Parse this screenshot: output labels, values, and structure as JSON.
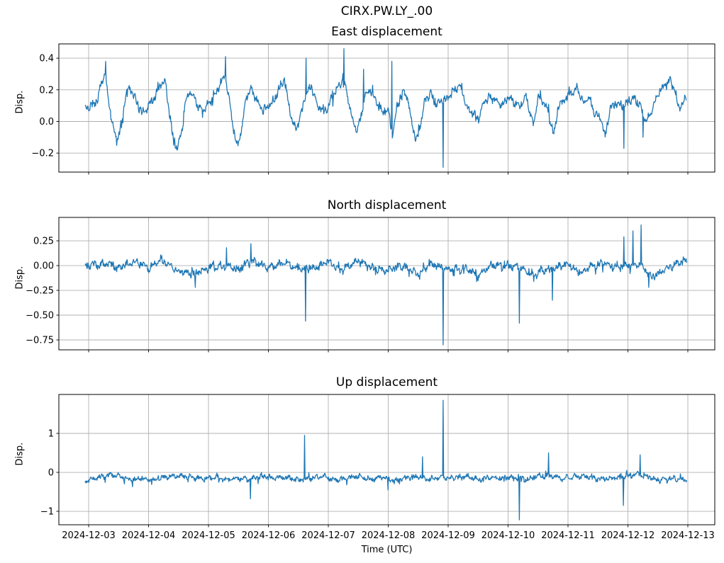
{
  "chart_data": {
    "type": "line",
    "suptitle": "CIRX.PW.LY_.00",
    "xlabel": "Time (UTC)",
    "x_ticklabels": [
      "2024-12-03",
      "2024-12-04",
      "2024-12-05",
      "2024-12-06",
      "2024-12-07",
      "2024-12-08",
      "2024-12-09",
      "2024-12-10",
      "2024-12-11",
      "2024-12-12",
      "2024-12-13"
    ],
    "x_tick_days": [
      0,
      1,
      2,
      3,
      4,
      5,
      6,
      7,
      8,
      9,
      10
    ],
    "data_t_range": [
      -0.06,
      9.98
    ],
    "line_color": "#1f77b4",
    "grid_color": "#b0b0b0",
    "spine_color": "#000000",
    "grid": true,
    "legend": "none",
    "subplots": [
      {
        "title": "East displacement",
        "ylabel": "Disp.",
        "ylim": [
          -0.32,
          0.49
        ],
        "yticks": [
          {
            "v": 0.4,
            "label": "0.4"
          },
          {
            "v": 0.2,
            "label": "0.2"
          },
          {
            "v": 0.0,
            "label": "0.0"
          },
          {
            "v": -0.2,
            "label": "−0.2"
          }
        ],
        "seed": 11,
        "noise": {
          "jitter": 0.018,
          "burst_p": 0.06,
          "burst_m": 3.0,
          "w1": 0.012,
          "f1": 8.3,
          "w2": 0.009,
          "f2": 21.7
        },
        "anchors": [
          [
            -0.06,
            0.08
          ],
          [
            0.05,
            0.1
          ],
          [
            0.15,
            0.14
          ],
          [
            0.22,
            0.25
          ],
          [
            0.28,
            0.3
          ],
          [
            0.33,
            0.13
          ],
          [
            0.4,
            -0.02
          ],
          [
            0.47,
            -0.12
          ],
          [
            0.55,
            -0.02
          ],
          [
            0.62,
            0.18
          ],
          [
            0.7,
            0.21
          ],
          [
            0.8,
            0.12
          ],
          [
            0.9,
            0.05
          ],
          [
            1.0,
            0.1
          ],
          [
            1.1,
            0.15
          ],
          [
            1.2,
            0.23
          ],
          [
            1.28,
            0.26
          ],
          [
            1.33,
            0.1
          ],
          [
            1.4,
            -0.08
          ],
          [
            1.48,
            -0.18
          ],
          [
            1.56,
            -0.05
          ],
          [
            1.63,
            0.15
          ],
          [
            1.7,
            0.19
          ],
          [
            1.8,
            0.12
          ],
          [
            1.9,
            0.06
          ],
          [
            2.0,
            0.12
          ],
          [
            2.1,
            0.16
          ],
          [
            2.2,
            0.24
          ],
          [
            2.28,
            0.3
          ],
          [
            2.35,
            0.12
          ],
          [
            2.42,
            -0.05
          ],
          [
            2.48,
            -0.16
          ],
          [
            2.56,
            -0.04
          ],
          [
            2.63,
            0.16
          ],
          [
            2.72,
            0.2
          ],
          [
            2.82,
            0.12
          ],
          [
            2.92,
            0.07
          ],
          [
            3.0,
            0.1
          ],
          [
            3.1,
            0.14
          ],
          [
            3.2,
            0.22
          ],
          [
            3.27,
            0.27
          ],
          [
            3.33,
            0.12
          ],
          [
            3.4,
            0.0
          ],
          [
            3.47,
            -0.05
          ],
          [
            3.55,
            0.05
          ],
          [
            3.63,
            0.18
          ],
          [
            3.72,
            0.22
          ],
          [
            3.82,
            0.1
          ],
          [
            3.92,
            0.06
          ],
          [
            4.0,
            0.1
          ],
          [
            4.08,
            0.16
          ],
          [
            4.18,
            0.22
          ],
          [
            4.26,
            0.28
          ],
          [
            4.33,
            0.14
          ],
          [
            4.4,
            0.02
          ],
          [
            4.47,
            -0.06
          ],
          [
            4.55,
            0.04
          ],
          [
            4.62,
            0.17
          ],
          [
            4.7,
            0.2
          ],
          [
            4.8,
            0.13
          ],
          [
            4.9,
            0.05
          ],
          [
            5.0,
            0.08
          ],
          [
            5.07,
            -0.09
          ],
          [
            5.15,
            0.1
          ],
          [
            5.25,
            0.2
          ],
          [
            5.32,
            0.15
          ],
          [
            5.4,
            -0.02
          ],
          [
            5.47,
            -0.13
          ],
          [
            5.55,
            0.0
          ],
          [
            5.62,
            0.14
          ],
          [
            5.7,
            0.18
          ],
          [
            5.8,
            0.1
          ],
          [
            5.9,
            0.13
          ],
          [
            6.0,
            0.15
          ],
          [
            6.1,
            0.2
          ],
          [
            6.2,
            0.23
          ],
          [
            6.3,
            0.1
          ],
          [
            6.4,
            0.05
          ],
          [
            6.5,
            0.02
          ],
          [
            6.6,
            0.12
          ],
          [
            6.7,
            0.16
          ],
          [
            6.8,
            0.13
          ],
          [
            6.9,
            0.1
          ],
          [
            7.0,
            0.16
          ],
          [
            7.1,
            0.12
          ],
          [
            7.2,
            0.1
          ],
          [
            7.3,
            0.16
          ],
          [
            7.42,
            -0.03
          ],
          [
            7.5,
            0.15
          ],
          [
            7.6,
            0.12
          ],
          [
            7.68,
            0.06
          ],
          [
            7.76,
            -0.08
          ],
          [
            7.85,
            0.1
          ],
          [
            7.95,
            0.14
          ],
          [
            8.05,
            0.18
          ],
          [
            8.15,
            0.21
          ],
          [
            8.25,
            0.12
          ],
          [
            8.35,
            0.15
          ],
          [
            8.45,
            0.05
          ],
          [
            8.55,
            0.02
          ],
          [
            8.62,
            -0.1
          ],
          [
            8.7,
            0.08
          ],
          [
            8.8,
            0.12
          ],
          [
            8.9,
            0.1
          ],
          [
            9.0,
            0.12
          ],
          [
            9.1,
            0.15
          ],
          [
            9.2,
            0.1
          ],
          [
            9.3,
            0.0
          ],
          [
            9.4,
            0.06
          ],
          [
            9.5,
            0.18
          ],
          [
            9.6,
            0.22
          ],
          [
            9.7,
            0.26
          ],
          [
            9.78,
            0.2
          ],
          [
            9.85,
            0.08
          ],
          [
            9.92,
            0.12
          ],
          [
            9.98,
            0.15
          ]
        ],
        "spikes": [
          [
            0.28,
            0.38
          ],
          [
            2.28,
            0.41
          ],
          [
            3.63,
            0.4
          ],
          [
            4.26,
            0.46
          ],
          [
            4.59,
            0.33
          ],
          [
            5.06,
            0.38
          ],
          [
            5.92,
            -0.29
          ],
          [
            8.93,
            -0.17
          ],
          [
            9.25,
            -0.1
          ]
        ]
      },
      {
        "title": "North displacement",
        "ylabel": "Disp.",
        "ylim": [
          -0.85,
          0.486
        ],
        "yticks": [
          {
            "v": 0.25,
            "label": "0.25"
          },
          {
            "v": 0.0,
            "label": "0.00"
          },
          {
            "v": -0.25,
            "label": "−0.25"
          },
          {
            "v": -0.5,
            "label": "−0.50"
          },
          {
            "v": -0.75,
            "label": "−0.75"
          }
        ],
        "seed": 23,
        "noise": {
          "jitter": 0.026,
          "burst_p": 0.05,
          "burst_m": 2.6,
          "w1": 0.018,
          "f1": 7.1,
          "w2": 0.012,
          "f2": 17.3
        },
        "anchors": [
          [
            -0.06,
            0.0
          ],
          [
            0.3,
            0.02
          ],
          [
            0.5,
            -0.02
          ],
          [
            0.8,
            0.05
          ],
          [
            1.0,
            -0.03
          ],
          [
            1.2,
            0.06
          ],
          [
            1.5,
            -0.06
          ],
          [
            1.75,
            -0.08
          ],
          [
            2.0,
            -0.02
          ],
          [
            2.3,
            0.0
          ],
          [
            2.5,
            -0.05
          ],
          [
            2.7,
            0.05
          ],
          [
            3.0,
            -0.02
          ],
          [
            3.3,
            0.03
          ],
          [
            3.5,
            -0.04
          ],
          [
            3.8,
            -0.02
          ],
          [
            4.0,
            0.04
          ],
          [
            4.2,
            -0.05
          ],
          [
            4.5,
            0.05
          ],
          [
            4.7,
            -0.02
          ],
          [
            5.0,
            -0.05
          ],
          [
            5.2,
            0.0
          ],
          [
            5.5,
            -0.08
          ],
          [
            5.7,
            0.02
          ],
          [
            6.0,
            -0.04
          ],
          [
            6.3,
            -0.02
          ],
          [
            6.5,
            -0.1
          ],
          [
            6.7,
            0.0
          ],
          [
            7.0,
            0.0
          ],
          [
            7.2,
            -0.02
          ],
          [
            7.4,
            -0.1
          ],
          [
            7.6,
            -0.05
          ],
          [
            7.8,
            -0.02
          ],
          [
            8.0,
            0.02
          ],
          [
            8.2,
            -0.08
          ],
          [
            8.4,
            0.0
          ],
          [
            8.6,
            0.02
          ],
          [
            8.8,
            -0.02
          ],
          [
            9.0,
            0.0
          ],
          [
            9.2,
            0.02
          ],
          [
            9.4,
            -0.12
          ],
          [
            9.6,
            -0.05
          ],
          [
            9.8,
            0.02
          ],
          [
            9.98,
            0.05
          ]
        ],
        "spikes": [
          [
            1.78,
            -0.22
          ],
          [
            2.3,
            0.18
          ],
          [
            2.71,
            0.22
          ],
          [
            3.62,
            -0.56
          ],
          [
            5.92,
            -0.8
          ],
          [
            7.19,
            -0.58
          ],
          [
            7.74,
            -0.35
          ],
          [
            8.93,
            0.29
          ],
          [
            9.08,
            0.35
          ],
          [
            9.22,
            0.41
          ],
          [
            9.35,
            -0.22
          ]
        ]
      },
      {
        "title": "Up displacement",
        "ylabel": "Disp.",
        "ylim": [
          -1.345,
          2.0
        ],
        "yticks": [
          {
            "v": 1,
            "label": "1"
          },
          {
            "v": 0,
            "label": "0"
          },
          {
            "v": -1,
            "label": "−1"
          }
        ],
        "seed": 37,
        "noise": {
          "jitter": 0.05,
          "burst_p": 0.05,
          "burst_m": 2.8,
          "w1": 0.03,
          "f1": 6.7,
          "w2": 0.02,
          "f2": 15.1
        },
        "anchors": [
          [
            -0.06,
            -0.3
          ],
          [
            0.0,
            -0.2
          ],
          [
            0.2,
            -0.12
          ],
          [
            0.4,
            -0.05
          ],
          [
            0.5,
            -0.1
          ],
          [
            0.7,
            -0.2
          ],
          [
            0.9,
            -0.15
          ],
          [
            1.1,
            -0.2
          ],
          [
            1.3,
            -0.12
          ],
          [
            1.5,
            -0.08
          ],
          [
            1.7,
            -0.12
          ],
          [
            1.9,
            -0.18
          ],
          [
            2.1,
            -0.12
          ],
          [
            2.3,
            -0.2
          ],
          [
            2.5,
            -0.15
          ],
          [
            2.7,
            -0.18
          ],
          [
            2.9,
            -0.1
          ],
          [
            3.1,
            -0.15
          ],
          [
            3.3,
            -0.12
          ],
          [
            3.5,
            -0.2
          ],
          [
            3.7,
            -0.15
          ],
          [
            3.9,
            -0.1
          ],
          [
            4.1,
            -0.2
          ],
          [
            4.3,
            -0.15
          ],
          [
            4.5,
            -0.1
          ],
          [
            4.7,
            -0.18
          ],
          [
            4.9,
            -0.12
          ],
          [
            5.1,
            -0.22
          ],
          [
            5.3,
            -0.15
          ],
          [
            5.5,
            -0.1
          ],
          [
            5.7,
            -0.18
          ],
          [
            5.9,
            -0.12
          ],
          [
            6.1,
            -0.15
          ],
          [
            6.3,
            -0.1
          ],
          [
            6.5,
            -0.2
          ],
          [
            6.7,
            -0.12
          ],
          [
            6.9,
            -0.15
          ],
          [
            7.1,
            -0.12
          ],
          [
            7.3,
            -0.18
          ],
          [
            7.5,
            -0.1
          ],
          [
            7.7,
            -0.08
          ],
          [
            7.9,
            -0.15
          ],
          [
            8.1,
            -0.12
          ],
          [
            8.3,
            -0.1
          ],
          [
            8.5,
            -0.18
          ],
          [
            8.7,
            -0.15
          ],
          [
            8.9,
            -0.12
          ],
          [
            9.1,
            -0.05
          ],
          [
            9.3,
            -0.1
          ],
          [
            9.5,
            -0.2
          ],
          [
            9.7,
            -0.15
          ],
          [
            9.9,
            -0.18
          ],
          [
            9.98,
            -0.2
          ]
        ],
        "spikes": [
          [
            2.7,
            -0.68
          ],
          [
            3.6,
            0.95
          ],
          [
            5.0,
            -0.45
          ],
          [
            5.57,
            0.4
          ],
          [
            5.92,
            1.85
          ],
          [
            7.19,
            -1.22
          ],
          [
            7.68,
            0.5
          ],
          [
            8.92,
            -0.85
          ],
          [
            9.2,
            0.45
          ]
        ]
      }
    ]
  }
}
